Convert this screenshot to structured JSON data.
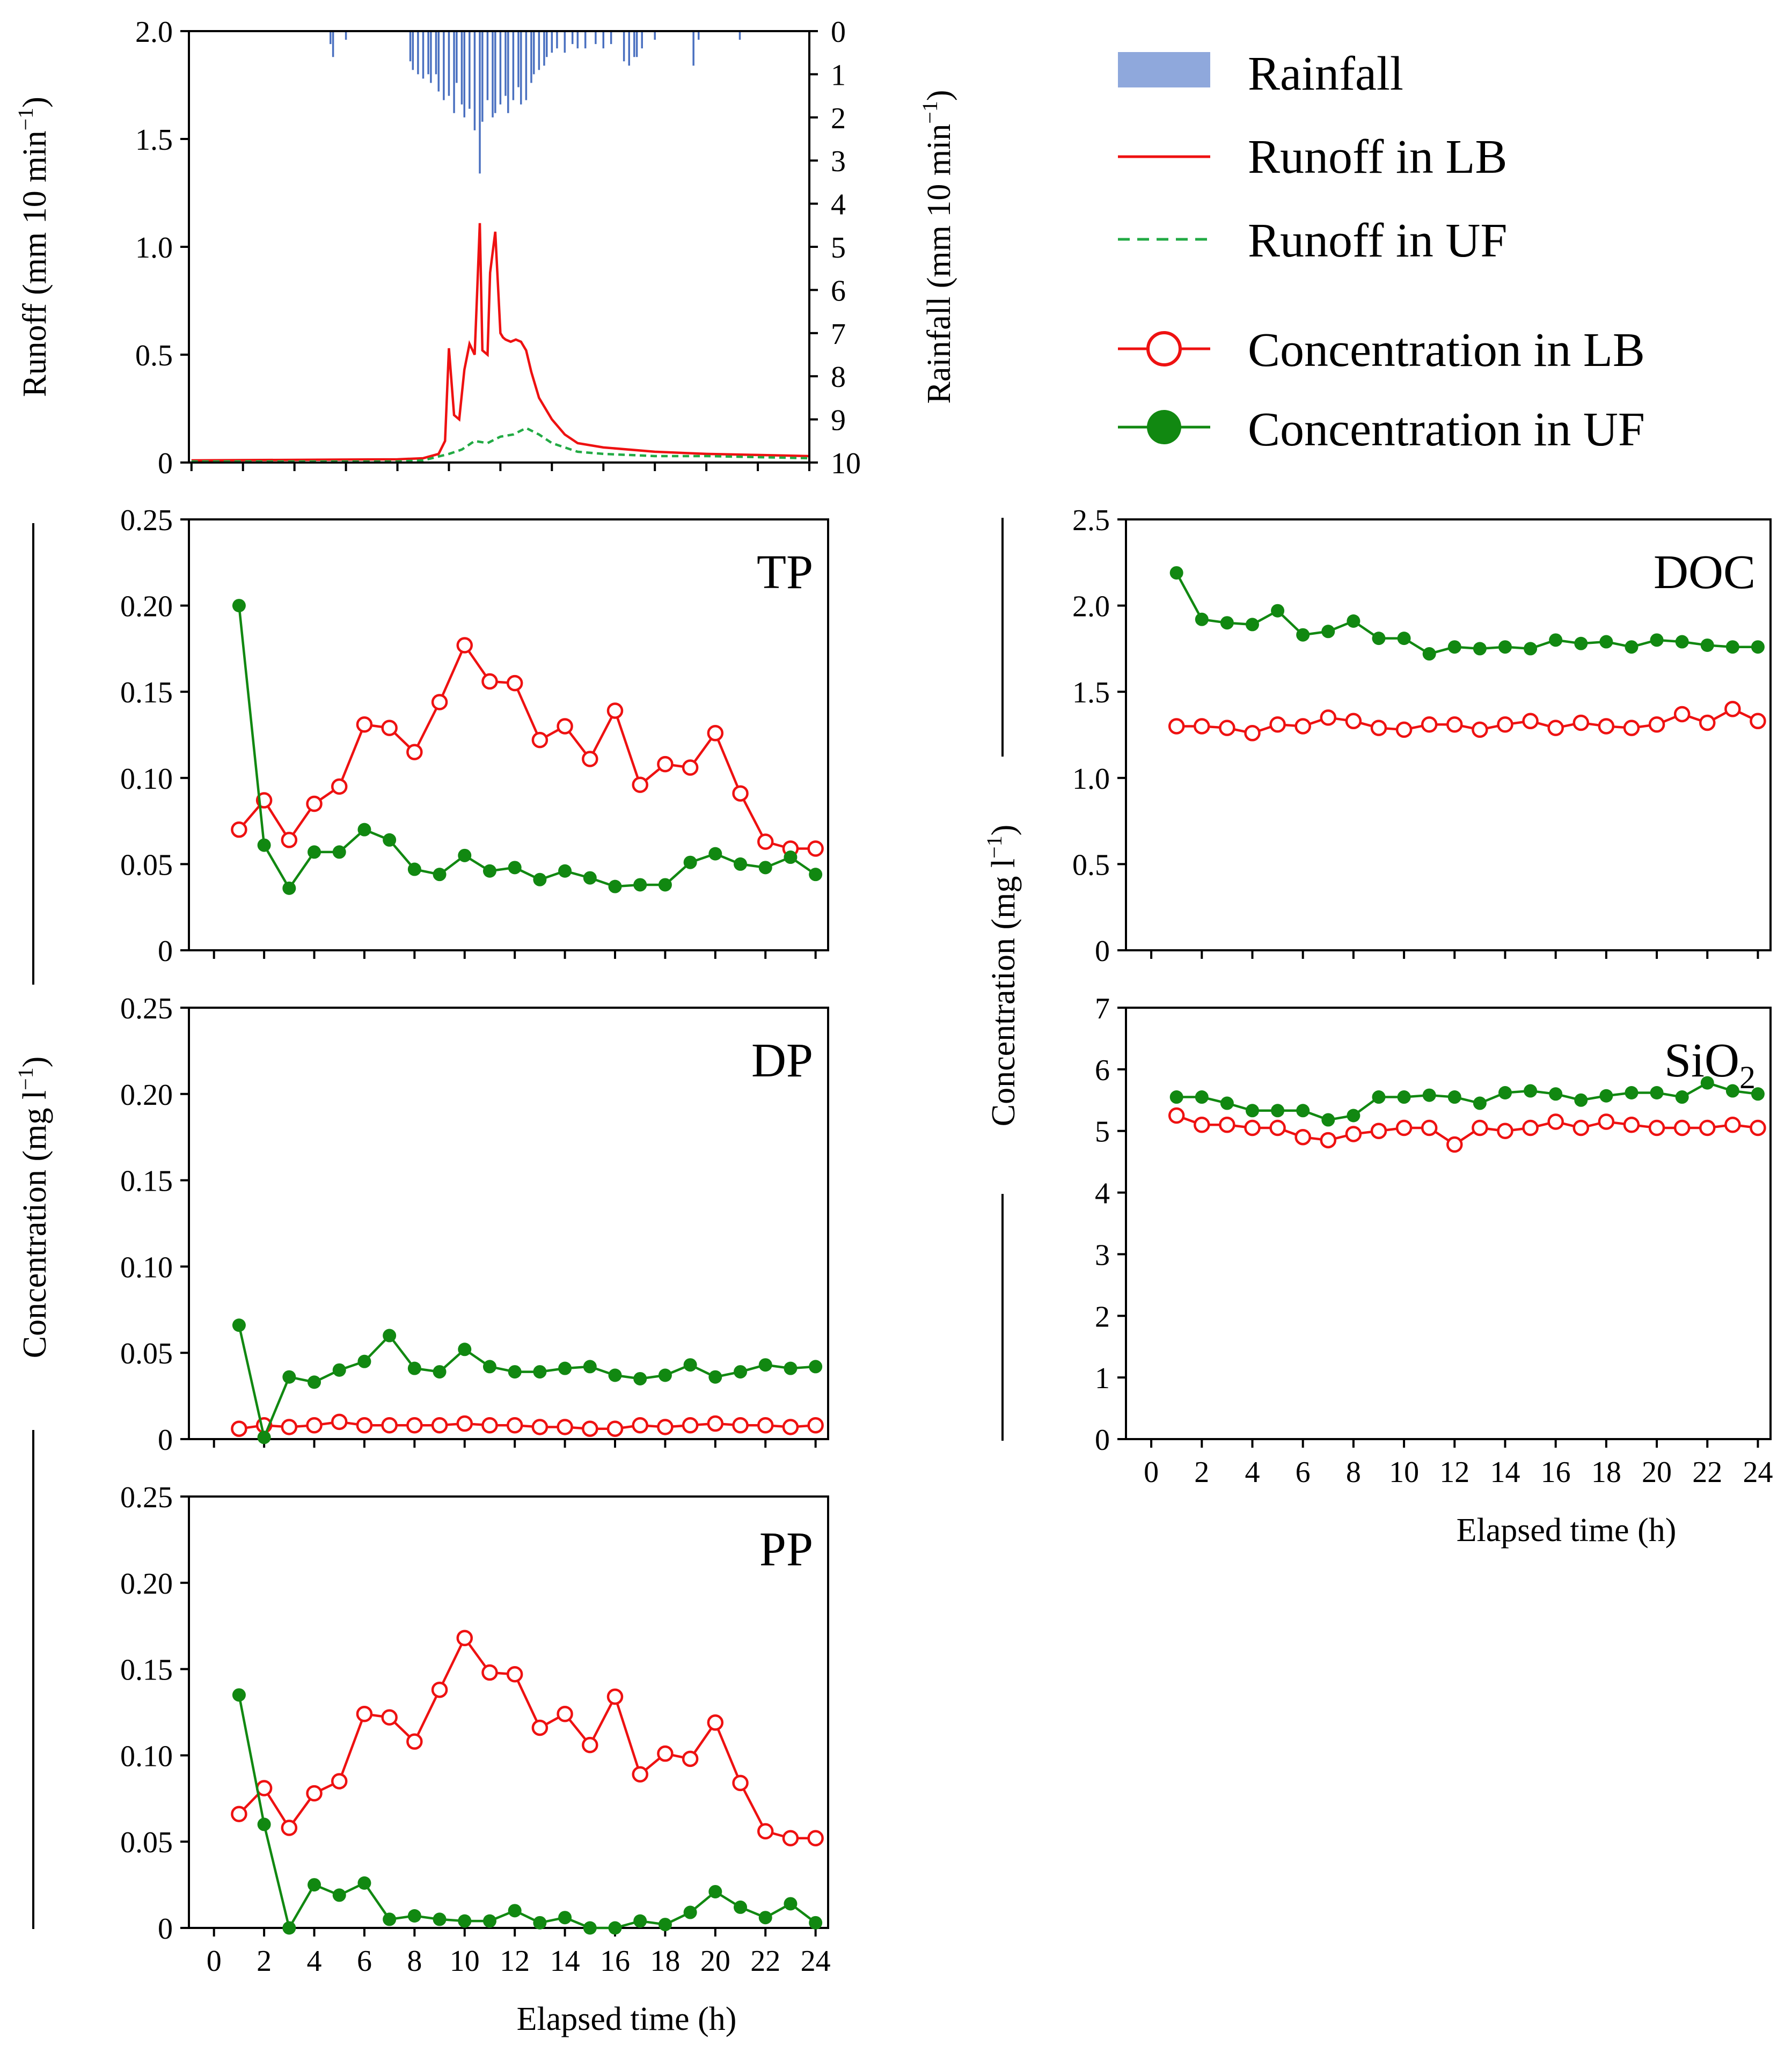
{
  "colors": {
    "lb": "#ee1111",
    "uf": "#118811",
    "rain": "#4a70c0",
    "rain_legend": "#8fa8dc",
    "uf_dash": "#22aa44"
  },
  "legend": {
    "rainfall": "Rainfall",
    "runoff_lb": "Runoff in LB",
    "runoff_uf": "Runoff in UF",
    "conc_lb": "Concentration in LB",
    "conc_uf": "Concentration in UF"
  },
  "shared_labels": {
    "concentration_ylabel": "Concentration (mg l",
    "concentration_ylabel_sup": "−1",
    "concentration_ylabel_end": ")",
    "xlabel": "Elapsed time (h)"
  },
  "chart_data": [
    {
      "id": "runoff",
      "type": "line",
      "ylabel": "Runoff (mm 10 min",
      "ylabel_sup": "−1",
      "ylabel_end": ")",
      "ylim": [
        0,
        2.0
      ],
      "yticks": [
        "0",
        "0.5",
        "1.0",
        "1.5",
        "2.0"
      ],
      "xlim": [
        -0.1,
        24.0
      ],
      "y2label": "Rainfall (mm 10 min",
      "y2label_sup": "−1",
      "y2label_end": ")",
      "y2lim": [
        0,
        10
      ],
      "y2_inverted": true,
      "y2ticks": [
        "0",
        "1",
        "2",
        "3",
        "4",
        "5",
        "6",
        "7",
        "8",
        "9",
        "10"
      ],
      "rainfall": {
        "name": "Rainfall",
        "x": [
          5.4,
          5.5,
          6.0,
          8.5,
          8.6,
          8.8,
          9.0,
          9.2,
          9.3,
          9.5,
          9.6,
          9.8,
          10.0,
          10.2,
          10.3,
          10.5,
          10.6,
          10.8,
          11.0,
          11.2,
          11.3,
          11.5,
          11.7,
          11.8,
          12.0,
          12.2,
          12.3,
          12.5,
          12.7,
          12.8,
          13.0,
          13.2,
          13.3,
          13.5,
          13.7,
          13.8,
          14.0,
          14.2,
          14.5,
          14.8,
          15.0,
          15.3,
          15.7,
          16.0,
          16.3,
          16.8,
          17.0,
          17.2,
          17.3,
          17.5,
          18.0,
          19.5,
          19.7,
          21.3
        ],
        "values": [
          0.3,
          0.6,
          0.2,
          0.7,
          0.9,
          1.0,
          1.1,
          1.0,
          1.2,
          1.0,
          1.4,
          1.6,
          1.5,
          1.9,
          1.2,
          1.7,
          2.0,
          1.8,
          2.3,
          3.3,
          2.1,
          1.6,
          2.0,
          1.9,
          1.7,
          1.5,
          1.9,
          1.6,
          1.3,
          1.7,
          1.6,
          1.2,
          1.0,
          0.9,
          0.8,
          0.6,
          0.5,
          0.4,
          0.5,
          0.3,
          0.4,
          0.4,
          0.3,
          0.4,
          0.3,
          0.7,
          0.8,
          0.6,
          0.6,
          0.4,
          0.2,
          0.8,
          0.2,
          0.2
        ]
      },
      "series": [
        {
          "name": "Runoff in LB",
          "x": [
            0,
            8.0,
            9.0,
            9.6,
            9.85,
            10.0,
            10.2,
            10.4,
            10.6,
            10.8,
            11.0,
            11.1,
            11.2,
            11.3,
            11.5,
            11.6,
            11.8,
            12.0,
            12.1,
            12.2,
            12.4,
            12.6,
            12.8,
            13.0,
            13.2,
            13.5,
            14.0,
            14.5,
            15.0,
            16.0,
            18.0,
            20.0,
            22.0,
            24.0
          ],
          "values": [
            0.01,
            0.015,
            0.02,
            0.04,
            0.1,
            0.53,
            0.22,
            0.2,
            0.43,
            0.55,
            0.5,
            0.8,
            1.11,
            0.52,
            0.5,
            0.88,
            1.07,
            0.6,
            0.58,
            0.57,
            0.56,
            0.57,
            0.56,
            0.52,
            0.42,
            0.3,
            0.2,
            0.13,
            0.09,
            0.07,
            0.05,
            0.04,
            0.035,
            0.03
          ]
        },
        {
          "name": "Runoff in UF",
          "x": [
            0,
            8.0,
            9.0,
            10.0,
            10.5,
            11.0,
            11.5,
            12.0,
            12.5,
            13.0,
            13.5,
            14.0,
            14.5,
            15.0,
            16.0,
            18.0,
            20.0,
            22.0,
            24.0
          ],
          "values": [
            0.005,
            0.005,
            0.01,
            0.04,
            0.06,
            0.1,
            0.09,
            0.12,
            0.13,
            0.16,
            0.13,
            0.09,
            0.07,
            0.05,
            0.04,
            0.03,
            0.03,
            0.025,
            0.02
          ]
        }
      ]
    },
    {
      "id": "TP",
      "type": "line",
      "title": "TP",
      "xlim": [
        -1,
        24.5
      ],
      "ylim": [
        0,
        0.25
      ],
      "yticks": [
        "0",
        "0.05",
        "0.10",
        "0.15",
        "0.20",
        "0.25"
      ],
      "x": [
        1,
        2,
        3,
        4,
        5,
        6,
        7,
        8,
        9,
        10,
        11,
        12,
        13,
        14,
        15,
        16,
        17,
        18,
        19,
        20,
        21,
        22,
        23,
        24
      ],
      "series": [
        {
          "name": "Concentration in LB",
          "values": [
            0.07,
            0.087,
            0.064,
            0.085,
            0.095,
            0.131,
            0.129,
            0.115,
            0.144,
            0.177,
            0.156,
            0.155,
            0.122,
            0.13,
            0.111,
            0.139,
            0.096,
            0.108,
            0.106,
            0.126,
            0.091,
            0.063,
            0.059,
            0.059
          ]
        },
        {
          "name": "Concentration in UF",
          "values": [
            0.2,
            0.061,
            0.036,
            0.057,
            0.057,
            0.07,
            0.064,
            0.047,
            0.044,
            0.055,
            0.046,
            0.048,
            0.041,
            0.046,
            0.042,
            0.037,
            0.038,
            0.038,
            0.051,
            0.056,
            0.05,
            0.048,
            0.054,
            0.044
          ]
        }
      ]
    },
    {
      "id": "DP",
      "type": "line",
      "title": "DP",
      "xlim": [
        -1,
        24.5
      ],
      "ylim": [
        0,
        0.25
      ],
      "yticks": [
        "0",
        "0.05",
        "0.10",
        "0.15",
        "0.20",
        "0.25"
      ],
      "x": [
        1,
        2,
        3,
        4,
        5,
        6,
        7,
        8,
        9,
        10,
        11,
        12,
        13,
        14,
        15,
        16,
        17,
        18,
        19,
        20,
        21,
        22,
        23,
        24
      ],
      "series": [
        {
          "name": "Concentration in LB",
          "values": [
            0.006,
            0.008,
            0.007,
            0.008,
            0.01,
            0.008,
            0.008,
            0.008,
            0.008,
            0.009,
            0.008,
            0.008,
            0.007,
            0.007,
            0.006,
            0.006,
            0.008,
            0.007,
            0.008,
            0.009,
            0.008,
            0.008,
            0.007,
            0.008
          ]
        },
        {
          "name": "Concentration in UF",
          "values": [
            0.066,
            0.001,
            0.036,
            0.033,
            0.04,
            0.045,
            0.06,
            0.041,
            0.039,
            0.052,
            0.042,
            0.039,
            0.039,
            0.041,
            0.042,
            0.037,
            0.035,
            0.037,
            0.043,
            0.036,
            0.039,
            0.043,
            0.041,
            0.042
          ]
        }
      ]
    },
    {
      "id": "PP",
      "type": "line",
      "title": "PP",
      "xlabel": "Elapsed time (h)",
      "xlim": [
        -1,
        24.5
      ],
      "ylim": [
        0,
        0.25
      ],
      "yticks": [
        "0",
        "0.05",
        "0.10",
        "0.15",
        "0.20",
        "0.25"
      ],
      "xticks": [
        "0",
        "2",
        "4",
        "6",
        "8",
        "10",
        "12",
        "14",
        "16",
        "18",
        "20",
        "22",
        "24"
      ],
      "x": [
        1,
        2,
        3,
        4,
        5,
        6,
        7,
        8,
        9,
        10,
        11,
        12,
        13,
        14,
        15,
        16,
        17,
        18,
        19,
        20,
        21,
        22,
        23,
        24
      ],
      "series": [
        {
          "name": "Concentration in LB",
          "values": [
            0.066,
            0.081,
            0.058,
            0.078,
            0.085,
            0.124,
            0.122,
            0.108,
            0.138,
            0.168,
            0.148,
            0.147,
            0.116,
            0.124,
            0.106,
            0.134,
            0.089,
            0.101,
            0.098,
            0.119,
            0.084,
            0.056,
            0.052,
            0.052
          ]
        },
        {
          "name": "Concentration in UF",
          "values": [
            0.135,
            0.06,
            0.0,
            0.025,
            0.019,
            0.026,
            0.005,
            0.007,
            0.005,
            0.004,
            0.004,
            0.01,
            0.003,
            0.006,
            0.0,
            0.0,
            0.004,
            0.002,
            0.009,
            0.021,
            0.012,
            0.006,
            0.014,
            0.003
          ]
        }
      ]
    },
    {
      "id": "DOC",
      "type": "line",
      "title": "DOC",
      "xlim": [
        -1,
        24.5
      ],
      "ylim": [
        0,
        2.5
      ],
      "yticks": [
        "0",
        "0.5",
        "1.0",
        "1.5",
        "2.0",
        "2.5"
      ],
      "x": [
        1,
        2,
        3,
        4,
        5,
        6,
        7,
        8,
        9,
        10,
        11,
        12,
        13,
        14,
        15,
        16,
        17,
        18,
        19,
        20,
        21,
        22,
        23,
        24
      ],
      "series": [
        {
          "name": "Concentration in LB",
          "values": [
            1.3,
            1.3,
            1.29,
            1.26,
            1.31,
            1.3,
            1.35,
            1.33,
            1.29,
            1.28,
            1.31,
            1.31,
            1.28,
            1.31,
            1.33,
            1.29,
            1.32,
            1.3,
            1.29,
            1.31,
            1.37,
            1.32,
            1.4,
            1.33
          ]
        },
        {
          "name": "Concentration in UF",
          "values": [
            2.19,
            1.92,
            1.9,
            1.89,
            1.97,
            1.83,
            1.85,
            1.91,
            1.81,
            1.81,
            1.72,
            1.76,
            1.75,
            1.76,
            1.75,
            1.8,
            1.78,
            1.79,
            1.76,
            1.8,
            1.79,
            1.77,
            1.76,
            1.76
          ]
        }
      ]
    },
    {
      "id": "SiO2",
      "type": "line",
      "title": "SiO",
      "title_sub": "2",
      "xlabel": "Elapsed time (h)",
      "xlim": [
        -1,
        24.5
      ],
      "ylim": [
        0,
        7
      ],
      "yticks": [
        "0",
        "1",
        "2",
        "3",
        "4",
        "5",
        "6",
        "7"
      ],
      "xticks": [
        "0",
        "2",
        "4",
        "6",
        "8",
        "10",
        "12",
        "14",
        "16",
        "18",
        "20",
        "22",
        "24"
      ],
      "x": [
        1,
        2,
        3,
        4,
        5,
        6,
        7,
        8,
        9,
        10,
        11,
        12,
        13,
        14,
        15,
        16,
        17,
        18,
        19,
        20,
        21,
        22,
        23,
        24
      ],
      "series": [
        {
          "name": "Concentration in LB",
          "values": [
            5.25,
            5.1,
            5.1,
            5.05,
            5.05,
            4.9,
            4.85,
            4.95,
            5.0,
            5.05,
            5.05,
            4.78,
            5.05,
            5.0,
            5.05,
            5.15,
            5.05,
            5.15,
            5.1,
            5.05,
            5.05,
            5.05,
            5.1,
            5.05
          ]
        },
        {
          "name": "Concentration in UF",
          "values": [
            5.55,
            5.55,
            5.45,
            5.33,
            5.33,
            5.33,
            5.18,
            5.25,
            5.55,
            5.55,
            5.58,
            5.55,
            5.45,
            5.62,
            5.65,
            5.6,
            5.5,
            5.57,
            5.62,
            5.62,
            5.55,
            5.78,
            5.65,
            5.6
          ]
        }
      ]
    }
  ]
}
